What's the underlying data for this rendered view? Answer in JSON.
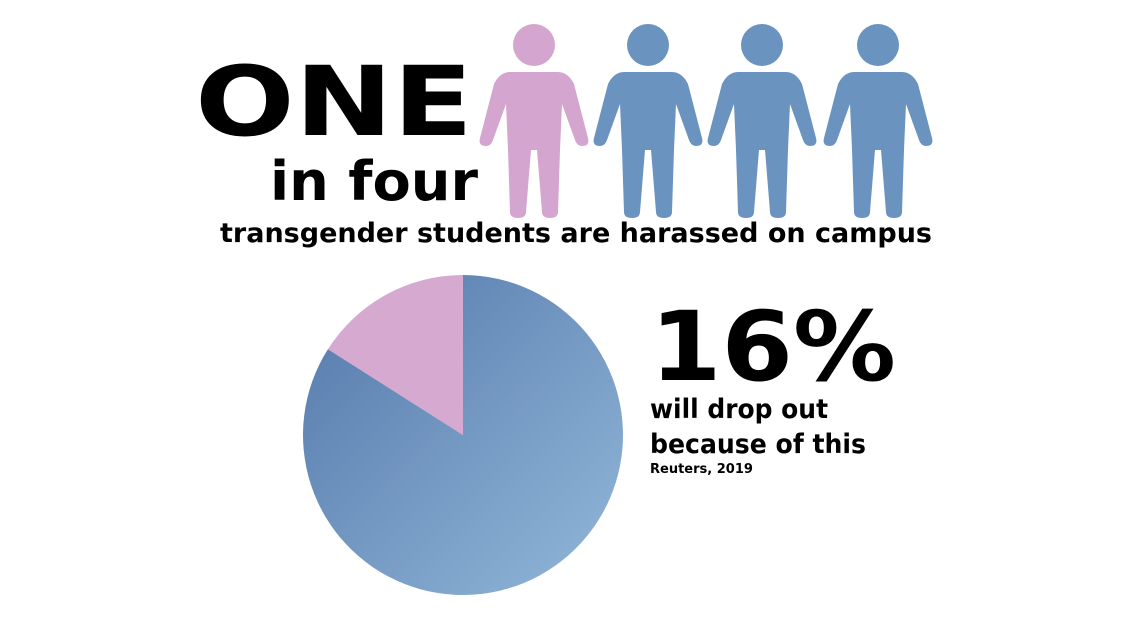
{
  "headline": {
    "big": "ONE",
    "small": "in four",
    "subtitle": "transgender students are harassed on campus"
  },
  "chart_data": {
    "type": "pie",
    "values": [
      16,
      84
    ],
    "value_labels": [
      "16%",
      null
    ],
    "colors": [
      "#d6a9d0",
      "#6f96c3"
    ]
  },
  "stat": {
    "line1": "will drop out",
    "line2": "because of this",
    "source": "Reuters, 2019"
  }
}
